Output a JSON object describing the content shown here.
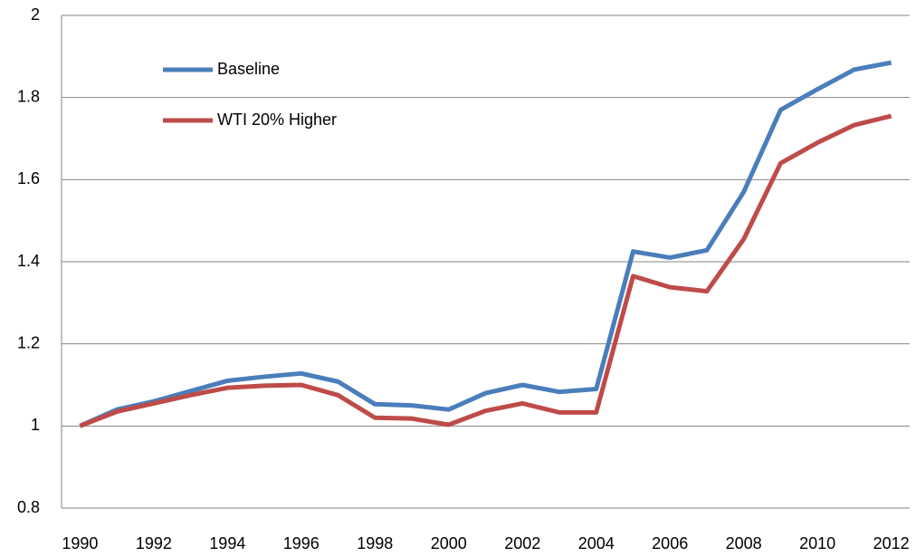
{
  "chart_data": {
    "type": "line",
    "x": [
      1990,
      1991,
      1992,
      1993,
      1994,
      1995,
      1996,
      1997,
      1998,
      1999,
      2000,
      2001,
      2002,
      2003,
      2004,
      2005,
      2006,
      2007,
      2008,
      2009,
      2010,
      2011,
      2012
    ],
    "xlim": [
      1989.5,
      2012.5
    ],
    "xticks": [
      1990,
      1992,
      1994,
      1996,
      1998,
      2000,
      2002,
      2004,
      2006,
      2008,
      2010,
      2012
    ],
    "ylim": [
      0.8,
      2
    ],
    "yticks": [
      0.8,
      1,
      1.2,
      1.4,
      1.6,
      1.8,
      2
    ],
    "grid": true,
    "legend": "upper-left",
    "series": [
      {
        "name": "Baseline",
        "color": "#4a7ebb",
        "values": [
          1.0,
          1.04,
          1.06,
          1.085,
          1.11,
          1.12,
          1.128,
          1.108,
          1.053,
          1.05,
          1.04,
          1.08,
          1.1,
          1.083,
          1.09,
          1.425,
          1.41,
          1.428,
          1.57,
          1.77,
          1.82,
          1.868,
          1.885
        ]
      },
      {
        "name": "WTI 20% Higher",
        "color": "#be4b48",
        "values": [
          1.0,
          1.035,
          1.055,
          1.075,
          1.093,
          1.098,
          1.1,
          1.075,
          1.02,
          1.018,
          1.003,
          1.037,
          1.055,
          1.033,
          1.033,
          1.365,
          1.338,
          1.328,
          1.455,
          1.64,
          1.69,
          1.733,
          1.755
        ]
      }
    ]
  }
}
